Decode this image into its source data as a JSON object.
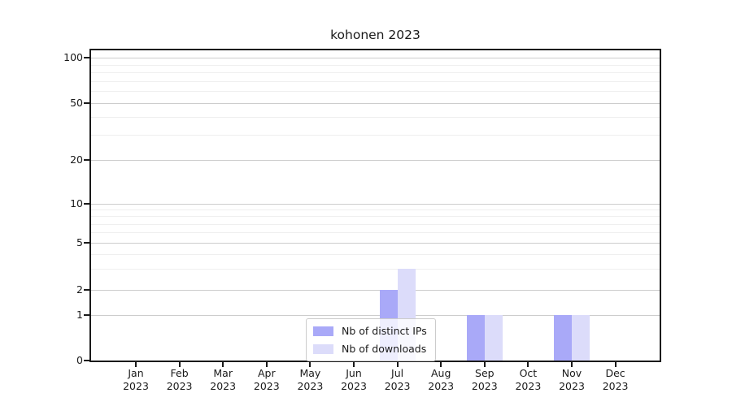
{
  "chart_data": {
    "type": "bar",
    "title": "kohonen 2023",
    "categories": [
      "Jan 2023",
      "Feb 2023",
      "Mar 2023",
      "Apr 2023",
      "May 2023",
      "Jun 2023",
      "Jul 2023",
      "Aug 2023",
      "Sep 2023",
      "Oct 2023",
      "Nov 2023",
      "Dec 2023"
    ],
    "x_axis": {
      "months": [
        "Jan",
        "Feb",
        "Mar",
        "Apr",
        "May",
        "Jun",
        "Jul",
        "Aug",
        "Sep",
        "Oct",
        "Nov",
        "Dec"
      ],
      "year": "2023"
    },
    "y_axis": {
      "ticks": [
        0,
        1,
        2,
        5,
        10,
        20,
        50,
        100
      ],
      "minor_ticks": [
        3,
        4,
        6,
        7,
        8,
        9,
        30,
        40,
        60,
        70,
        80,
        90
      ],
      "scale": "log",
      "range": [
        0,
        115
      ]
    },
    "series": [
      {
        "name": "Nb of distinct IPs",
        "color": "#a9a9f8",
        "values": [
          0,
          0,
          0,
          0,
          0,
          0,
          2,
          0,
          1,
          0,
          1,
          0
        ]
      },
      {
        "name": "Nb of downloads",
        "color": "#dcdcfa",
        "values": [
          0,
          0,
          0,
          0,
          0,
          0,
          3,
          0,
          1,
          0,
          1,
          0
        ]
      }
    ],
    "legend": {
      "position": "lower-center-inside",
      "entries": [
        "Nb of distinct IPs",
        "Nb of downloads"
      ]
    },
    "grid": {
      "major": true,
      "minor": true
    },
    "colors": {
      "grid_major": "#cdcdcd",
      "grid_minor": "#efefef",
      "axis": "#1a1a1a",
      "text": "#1a1a1a",
      "legend_border": "#cccccc"
    }
  }
}
